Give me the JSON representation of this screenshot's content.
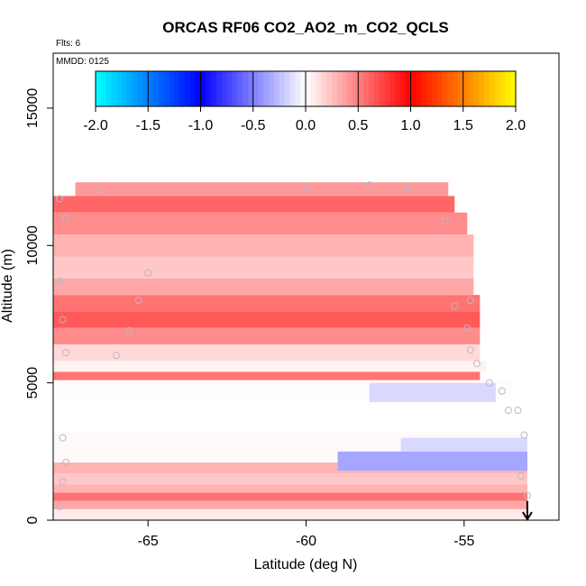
{
  "chart_data": {
    "type": "heatmap",
    "title": "ORCAS RF06 CO2_AO2_m_CO2_QCLS",
    "flights_label": "Flts: 6",
    "date_label": "MMDD: 0125",
    "xlabel": "Latitude (deg N)",
    "ylabel": "Altitude (m)",
    "xlim": [
      -68,
      -52
    ],
    "ylim": [
      0,
      17000
    ],
    "x_ticks": [
      -65,
      -60,
      -55
    ],
    "x_tick_labels": [
      "-65",
      "-60",
      "-55"
    ],
    "y_ticks": [
      0,
      5000,
      10000,
      15000
    ],
    "y_tick_labels": [
      "0",
      "5000",
      "10000",
      "15000"
    ],
    "colorbar": {
      "range": [
        -2.0,
        2.0
      ],
      "ticks": [
        -2.0,
        -1.5,
        -1.0,
        -0.5,
        0.0,
        0.5,
        1.0,
        1.5,
        2.0
      ],
      "tick_labels": [
        "-2.0",
        "-1.5",
        "-1.0",
        "-0.5",
        "0.0",
        "0.5",
        "1.0",
        "1.5",
        "2.0"
      ],
      "color_stops": [
        {
          "v": -2.0,
          "color": "#00ffff"
        },
        {
          "v": -1.0,
          "color": "#0000ff"
        },
        {
          "v": 0.0,
          "color": "#ffffff"
        },
        {
          "v": 1.0,
          "color": "#ff0000"
        },
        {
          "v": 2.0,
          "color": "#ffff00"
        }
      ]
    },
    "altitude_bands": [
      {
        "alt": [
          0,
          400
        ],
        "lat": [
          -68,
          -53
        ],
        "value": 0.08
      },
      {
        "alt": [
          400,
          700
        ],
        "lat": [
          -68,
          -53
        ],
        "value": 0.35
      },
      {
        "alt": [
          700,
          1000
        ],
        "lat": [
          -68,
          -53
        ],
        "value": 0.55
      },
      {
        "alt": [
          1000,
          1300
        ],
        "lat": [
          -68,
          -53
        ],
        "value": 0.3
      },
      {
        "alt": [
          1300,
          1700
        ],
        "lat": [
          -68,
          -53
        ],
        "value": 0.22
      },
      {
        "alt": [
          1700,
          2100
        ],
        "lat": [
          -68,
          -53
        ],
        "value": 0.3
      },
      {
        "alt": [
          2100,
          3200
        ],
        "lat": [
          -68,
          -53
        ],
        "value": 0.02
      },
      {
        "alt": [
          3200,
          4400
        ],
        "lat": [
          -68,
          -53
        ],
        "value": 0.0
      },
      {
        "alt": [
          4400,
          5100
        ],
        "lat": [
          -68,
          -53.5
        ],
        "value": 0.01
      },
      {
        "alt": [
          5100,
          5400
        ],
        "lat": [
          -68,
          -54.5
        ],
        "value": 0.55
      },
      {
        "alt": [
          5400,
          5800
        ],
        "lat": [
          -68,
          -54.3
        ],
        "value": 0.05
      },
      {
        "alt": [
          5800,
          6400
        ],
        "lat": [
          -68,
          -54.5
        ],
        "value": 0.15
      },
      {
        "alt": [
          6400,
          7000
        ],
        "lat": [
          -68,
          -54.5
        ],
        "value": 0.45
      },
      {
        "alt": [
          7000,
          7600
        ],
        "lat": [
          -68,
          -54.5
        ],
        "value": 0.65
      },
      {
        "alt": [
          7600,
          8200
        ],
        "lat": [
          -68,
          -54.5
        ],
        "value": 0.55
      },
      {
        "alt": [
          8200,
          8800
        ],
        "lat": [
          -68,
          -54.7
        ],
        "value": 0.35
      },
      {
        "alt": [
          8800,
          9600
        ],
        "lat": [
          -68,
          -54.7
        ],
        "value": 0.22
      },
      {
        "alt": [
          9600,
          10400
        ],
        "lat": [
          -68,
          -54.7
        ],
        "value": 0.3
      },
      {
        "alt": [
          10400,
          11200
        ],
        "lat": [
          -68,
          -54.9
        ],
        "value": 0.45
      },
      {
        "alt": [
          11200,
          11800
        ],
        "lat": [
          -68,
          -55.3
        ],
        "value": 0.6
      },
      {
        "alt": [
          11800,
          12300
        ],
        "lat": [
          -67.3,
          -55.5
        ],
        "value": 0.4
      }
    ],
    "negative_patches": [
      {
        "alt": [
          1800,
          2500
        ],
        "lat": [
          -59,
          -53
        ],
        "value": -0.35
      },
      {
        "alt": [
          2500,
          3000
        ],
        "lat": [
          -57,
          -53
        ],
        "value": -0.15
      },
      {
        "alt": [
          4300,
          5000
        ],
        "lat": [
          -58,
          -54
        ],
        "value": -0.15
      }
    ],
    "sample_points": [
      {
        "lat": -67.8,
        "alt": 500
      },
      {
        "lat": -67.7,
        "alt": 1400
      },
      {
        "lat": -67.6,
        "alt": 2100
      },
      {
        "lat": -67.7,
        "alt": 3000
      },
      {
        "lat": -67.6,
        "alt": 6100
      },
      {
        "lat": -67.7,
        "alt": 7300
      },
      {
        "lat": -67.8,
        "alt": 8700
      },
      {
        "lat": -67.6,
        "alt": 11000
      },
      {
        "lat": -67.8,
        "alt": 11700
      },
      {
        "lat": -66.0,
        "alt": 6000
      },
      {
        "lat": -65.6,
        "alt": 6900
      },
      {
        "lat": -65.3,
        "alt": 8000
      },
      {
        "lat": -65.0,
        "alt": 9000
      },
      {
        "lat": -66.5,
        "alt": 12000
      },
      {
        "lat": -60.0,
        "alt": 12100
      },
      {
        "lat": -58.0,
        "alt": 12200
      },
      {
        "lat": -56.8,
        "alt": 12100
      },
      {
        "lat": -55.6,
        "alt": 10900
      },
      {
        "lat": -55.3,
        "alt": 7800
      },
      {
        "lat": -54.8,
        "alt": 8000
      },
      {
        "lat": -54.9,
        "alt": 7000
      },
      {
        "lat": -54.8,
        "alt": 6200
      },
      {
        "lat": -54.6,
        "alt": 5700
      },
      {
        "lat": -54.2,
        "alt": 5000
      },
      {
        "lat": -53.8,
        "alt": 4700
      },
      {
        "lat": -53.6,
        "alt": 4000
      },
      {
        "lat": -53.3,
        "alt": 4000
      },
      {
        "lat": -53.1,
        "alt": 3100
      },
      {
        "lat": -53.2,
        "alt": 1600
      },
      {
        "lat": -53.0,
        "alt": 900
      }
    ],
    "arrow": {
      "lat": -53.0,
      "alt_from": 700,
      "alt_to": 0,
      "meaning": "descent toward landing"
    }
  }
}
